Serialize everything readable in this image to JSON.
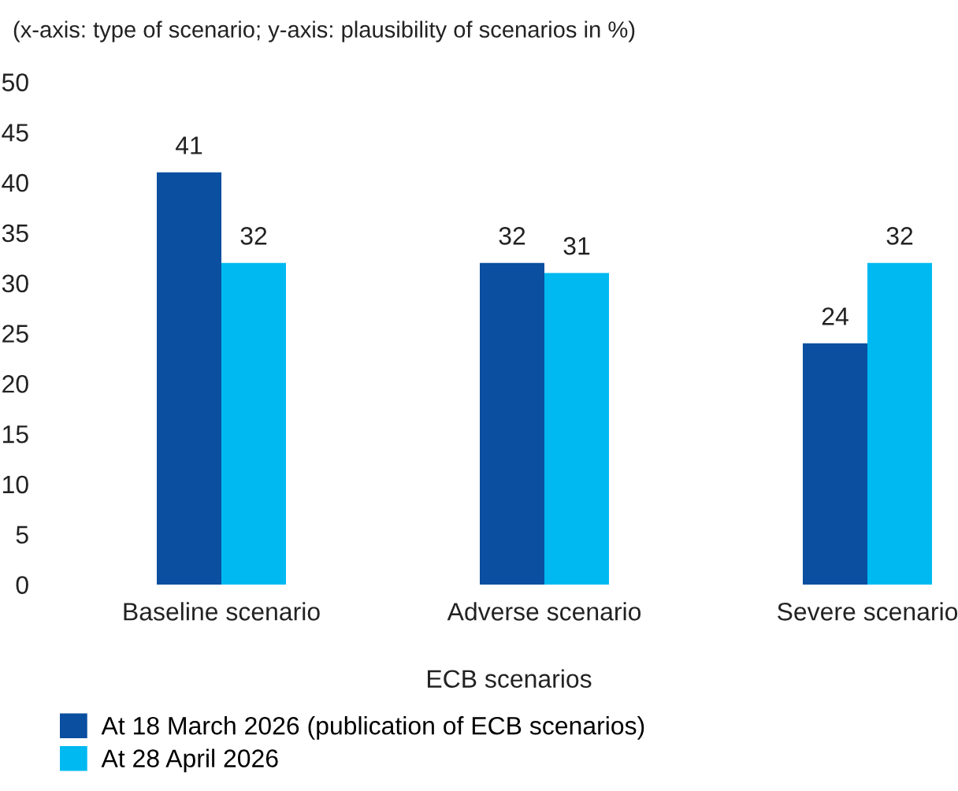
{
  "chart_data": {
    "type": "bar",
    "title": "(x-axis: type of scenario; y-axis: plausibility of scenarios in %)",
    "xlabel": "ECB scenarios",
    "categories": [
      "Baseline scenario",
      "Adverse scenario",
      "Severe scenario"
    ],
    "series": [
      {
        "name": "At 18 March 2026 (publication of ECB scenarios)",
        "color": "#0a4fa0",
        "values": [
          41,
          32,
          24
        ]
      },
      {
        "name": "At 28 April 2026",
        "color": "#00b9f1",
        "values": [
          32,
          31,
          32
        ]
      }
    ],
    "ylim": [
      0,
      50
    ],
    "yticks": [
      0,
      5,
      10,
      15,
      20,
      25,
      30,
      35,
      40,
      45,
      50
    ],
    "data_labels": true,
    "legend": "bottom",
    "grid": false
  }
}
